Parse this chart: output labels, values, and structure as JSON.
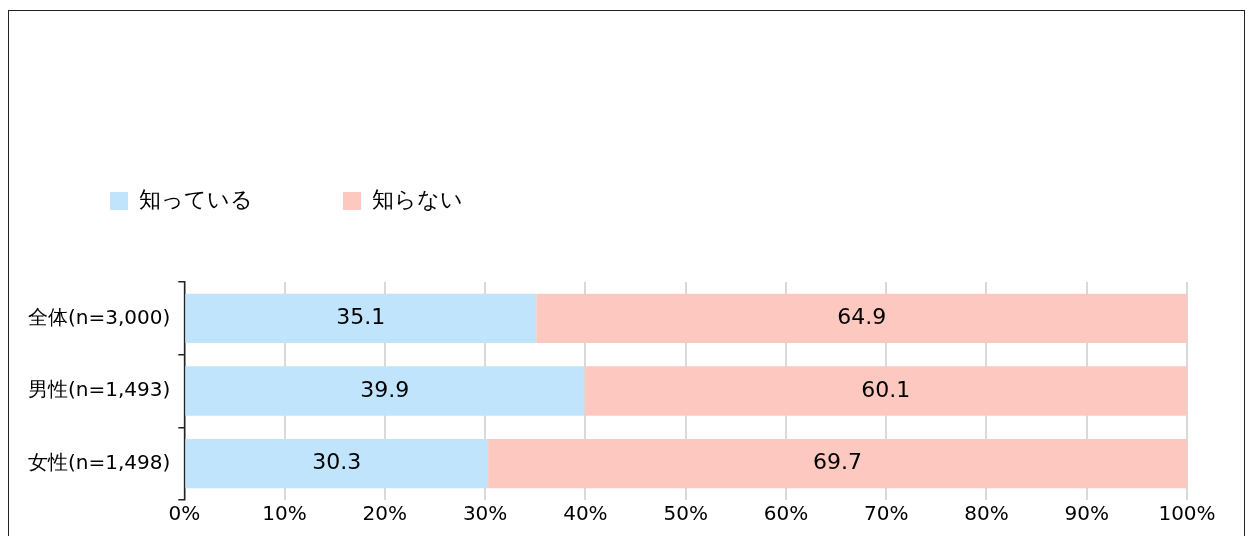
{
  "chart_data": {
    "type": "bar",
    "orientation": "horizontal",
    "stacked": true,
    "categories": [
      "全体(n=3,000)",
      "男性(n=1,493)",
      "女性(n=1,498)"
    ],
    "series": [
      {
        "name": "知っている",
        "color": "#bfe4fb",
        "values": [
          35.1,
          39.9,
          30.3
        ]
      },
      {
        "name": "知らない",
        "color": "#fcc8bf",
        "values": [
          64.9,
          60.1,
          69.7
        ]
      }
    ],
    "xlim": [
      0,
      100
    ],
    "xticks": [
      {
        "value": 0,
        "label": "0%"
      },
      {
        "value": 10,
        "label": "10%"
      },
      {
        "value": 20,
        "label": "20%"
      },
      {
        "value": 30,
        "label": "30%"
      },
      {
        "value": 40,
        "label": "40%"
      },
      {
        "value": 50,
        "label": "50%"
      },
      {
        "value": 60,
        "label": "60%"
      },
      {
        "value": 70,
        "label": "70%"
      },
      {
        "value": 80,
        "label": "80%"
      },
      {
        "value": 90,
        "label": "90%"
      },
      {
        "value": 100,
        "label": "100%"
      }
    ],
    "grid": "x",
    "legend": "top left",
    "data_labels": true
  }
}
